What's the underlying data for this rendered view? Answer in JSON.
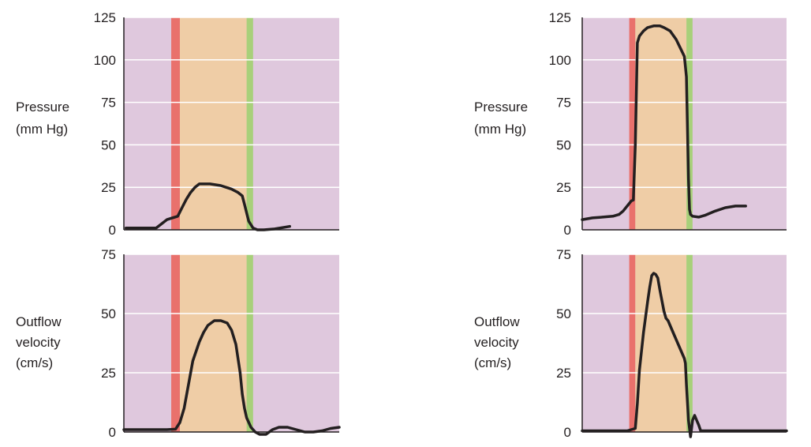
{
  "colors": {
    "diastole_band": "#dfc8dd",
    "isovolumic_contraction": "#e9716c",
    "ejection": "#efcda6",
    "isovolumic_relaxation": "#a8d07a",
    "trace": "#231f20",
    "gridline": "#ffffff",
    "axis": "#231f20"
  },
  "chart_data": [
    {
      "type": "line",
      "panel": "top-left",
      "ylabel": [
        "Pressure",
        "(mm Hg)"
      ],
      "xlabel": "",
      "ylim": [
        0,
        125
      ],
      "yticks": [
        0,
        25,
        50,
        75,
        100,
        125
      ],
      "xlim": [
        0,
        100
      ],
      "phases": [
        {
          "phase": "isovolumic_contraction",
          "x": [
            22,
            26
          ]
        },
        {
          "phase": "ejection",
          "x": [
            26,
            57
          ]
        },
        {
          "phase": "isovolumic_relaxation",
          "x": [
            57,
            60
          ]
        }
      ],
      "series": [
        {
          "x": [
            1,
            15,
            17,
            20,
            25,
            27,
            29,
            31,
            33,
            35,
            37,
            40,
            45,
            50,
            53,
            55,
            56,
            57,
            58,
            60,
            62,
            65,
            70,
            77
          ],
          "y": [
            1,
            1,
            3,
            6,
            8,
            13,
            18,
            22,
            25,
            27,
            27,
            27,
            26,
            24,
            22,
            20,
            15,
            10,
            5,
            1,
            0,
            0,
            0.5,
            2
          ]
        }
      ]
    },
    {
      "type": "line",
      "panel": "bottom-left",
      "ylabel": [
        "Outflow",
        "velocity",
        "(cm/s)"
      ],
      "xlabel": "",
      "ylim": [
        0,
        75
      ],
      "yticks": [
        0,
        25,
        50,
        75
      ],
      "xlim": [
        0,
        100
      ],
      "phases": [
        {
          "phase": "isovolumic_contraction",
          "x": [
            22,
            26
          ]
        },
        {
          "phase": "ejection",
          "x": [
            26,
            57
          ]
        },
        {
          "phase": "isovolumic_relaxation",
          "x": [
            57,
            60
          ]
        }
      ],
      "series": [
        {
          "x": [
            0,
            20,
            24,
            26,
            28,
            30,
            32,
            35,
            37,
            39,
            42,
            45,
            48,
            50,
            52,
            54,
            55,
            56,
            57,
            59,
            61,
            63,
            66,
            69,
            72,
            76,
            80,
            84,
            88,
            92,
            96,
            100
          ],
          "y": [
            1,
            1,
            1.2,
            4,
            10,
            20,
            30,
            38,
            42,
            45,
            47,
            47,
            46,
            43,
            37,
            25,
            16,
            10,
            6,
            2,
            0,
            -1,
            -1,
            1,
            2,
            2,
            1,
            0,
            0,
            0.5,
            1.5,
            2
          ]
        }
      ]
    },
    {
      "type": "line",
      "panel": "top-right",
      "ylabel": [
        "Pressure",
        "(mm Hg)"
      ],
      "xlabel": "",
      "ylim": [
        0,
        125
      ],
      "yticks": [
        0,
        25,
        50,
        75,
        100,
        125
      ],
      "xlim": [
        0,
        100
      ],
      "phases": [
        {
          "phase": "isovolumic_contraction",
          "x": [
            23,
            26
          ]
        },
        {
          "phase": "ejection",
          "x": [
            26,
            51
          ]
        },
        {
          "phase": "isovolumic_relaxation",
          "x": [
            51,
            54
          ]
        }
      ],
      "series": [
        {
          "x": [
            0,
            5,
            10,
            15,
            18,
            20,
            22,
            24,
            25,
            26,
            27,
            28,
            30,
            32,
            35,
            38,
            40,
            43,
            46,
            48,
            50,
            51,
            51.5,
            52,
            52.5,
            53,
            54,
            57,
            60,
            65,
            70,
            75,
            80
          ],
          "y": [
            6,
            7,
            7.5,
            8,
            9,
            11,
            14,
            17,
            17.5,
            50,
            110,
            114,
            117,
            119,
            120,
            120,
            119,
            117,
            112,
            107,
            102,
            90,
            60,
            30,
            12,
            9,
            8,
            7.5,
            8.5,
            11,
            13,
            14,
            14
          ]
        }
      ]
    },
    {
      "type": "line",
      "panel": "bottom-right",
      "ylabel": [
        "Outflow",
        "velocity",
        "(cm/s)"
      ],
      "xlabel": "",
      "ylim": [
        0,
        75
      ],
      "yticks": [
        0,
        25,
        50,
        75
      ],
      "xlim": [
        0,
        100
      ],
      "phases": [
        {
          "phase": "isovolumic_contraction",
          "x": [
            23,
            26
          ]
        },
        {
          "phase": "ejection",
          "x": [
            26,
            51
          ]
        },
        {
          "phase": "isovolumic_relaxation",
          "x": [
            51,
            54
          ]
        }
      ],
      "series": [
        {
          "x": [
            0,
            18,
            22,
            26,
            27,
            28,
            30,
            32,
            33,
            34,
            35,
            36,
            37,
            38,
            40,
            41,
            42,
            45,
            47,
            50,
            50.5,
            51,
            52,
            53,
            54,
            55,
            56,
            57,
            58,
            60,
            70,
            80,
            90,
            100
          ],
          "y": [
            0.5,
            0.5,
            0.5,
            1.5,
            12,
            26,
            42,
            55,
            61,
            66,
            67,
            66.5,
            65,
            60,
            51,
            48,
            47,
            41,
            37,
            31,
            29,
            20,
            5,
            -2,
            5,
            7,
            5,
            3,
            0.5,
            0.5,
            0.5,
            0.5,
            0.5,
            0.5
          ]
        }
      ]
    }
  ]
}
